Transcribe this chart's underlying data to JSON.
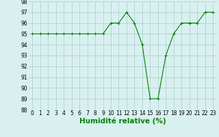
{
  "x": [
    0,
    1,
    2,
    3,
    4,
    5,
    6,
    7,
    8,
    9,
    10,
    11,
    12,
    13,
    14,
    15,
    16,
    17,
    18,
    19,
    20,
    21,
    22,
    23
  ],
  "y": [
    95,
    95,
    95,
    95,
    95,
    95,
    95,
    95,
    95,
    95,
    96,
    96,
    97,
    96,
    94,
    89,
    89,
    93,
    95,
    96,
    96,
    96,
    97,
    97
  ],
  "line_color": "#008000",
  "marker": "+",
  "bg_color": "#d8f0f0",
  "grid_color": "#aacccc",
  "xlabel": "Humidité relative (%)",
  "xlabel_color": "#008000",
  "ylim": [
    88,
    98
  ],
  "xlim": [
    -0.5,
    23.5
  ],
  "yticks": [
    88,
    89,
    90,
    91,
    92,
    93,
    94,
    95,
    96,
    97,
    98
  ],
  "xticks": [
    0,
    1,
    2,
    3,
    4,
    5,
    6,
    7,
    8,
    9,
    10,
    11,
    12,
    13,
    14,
    15,
    16,
    17,
    18,
    19,
    20,
    21,
    22,
    23
  ],
  "tick_fontsize": 5.5,
  "xlabel_fontsize": 7.5
}
